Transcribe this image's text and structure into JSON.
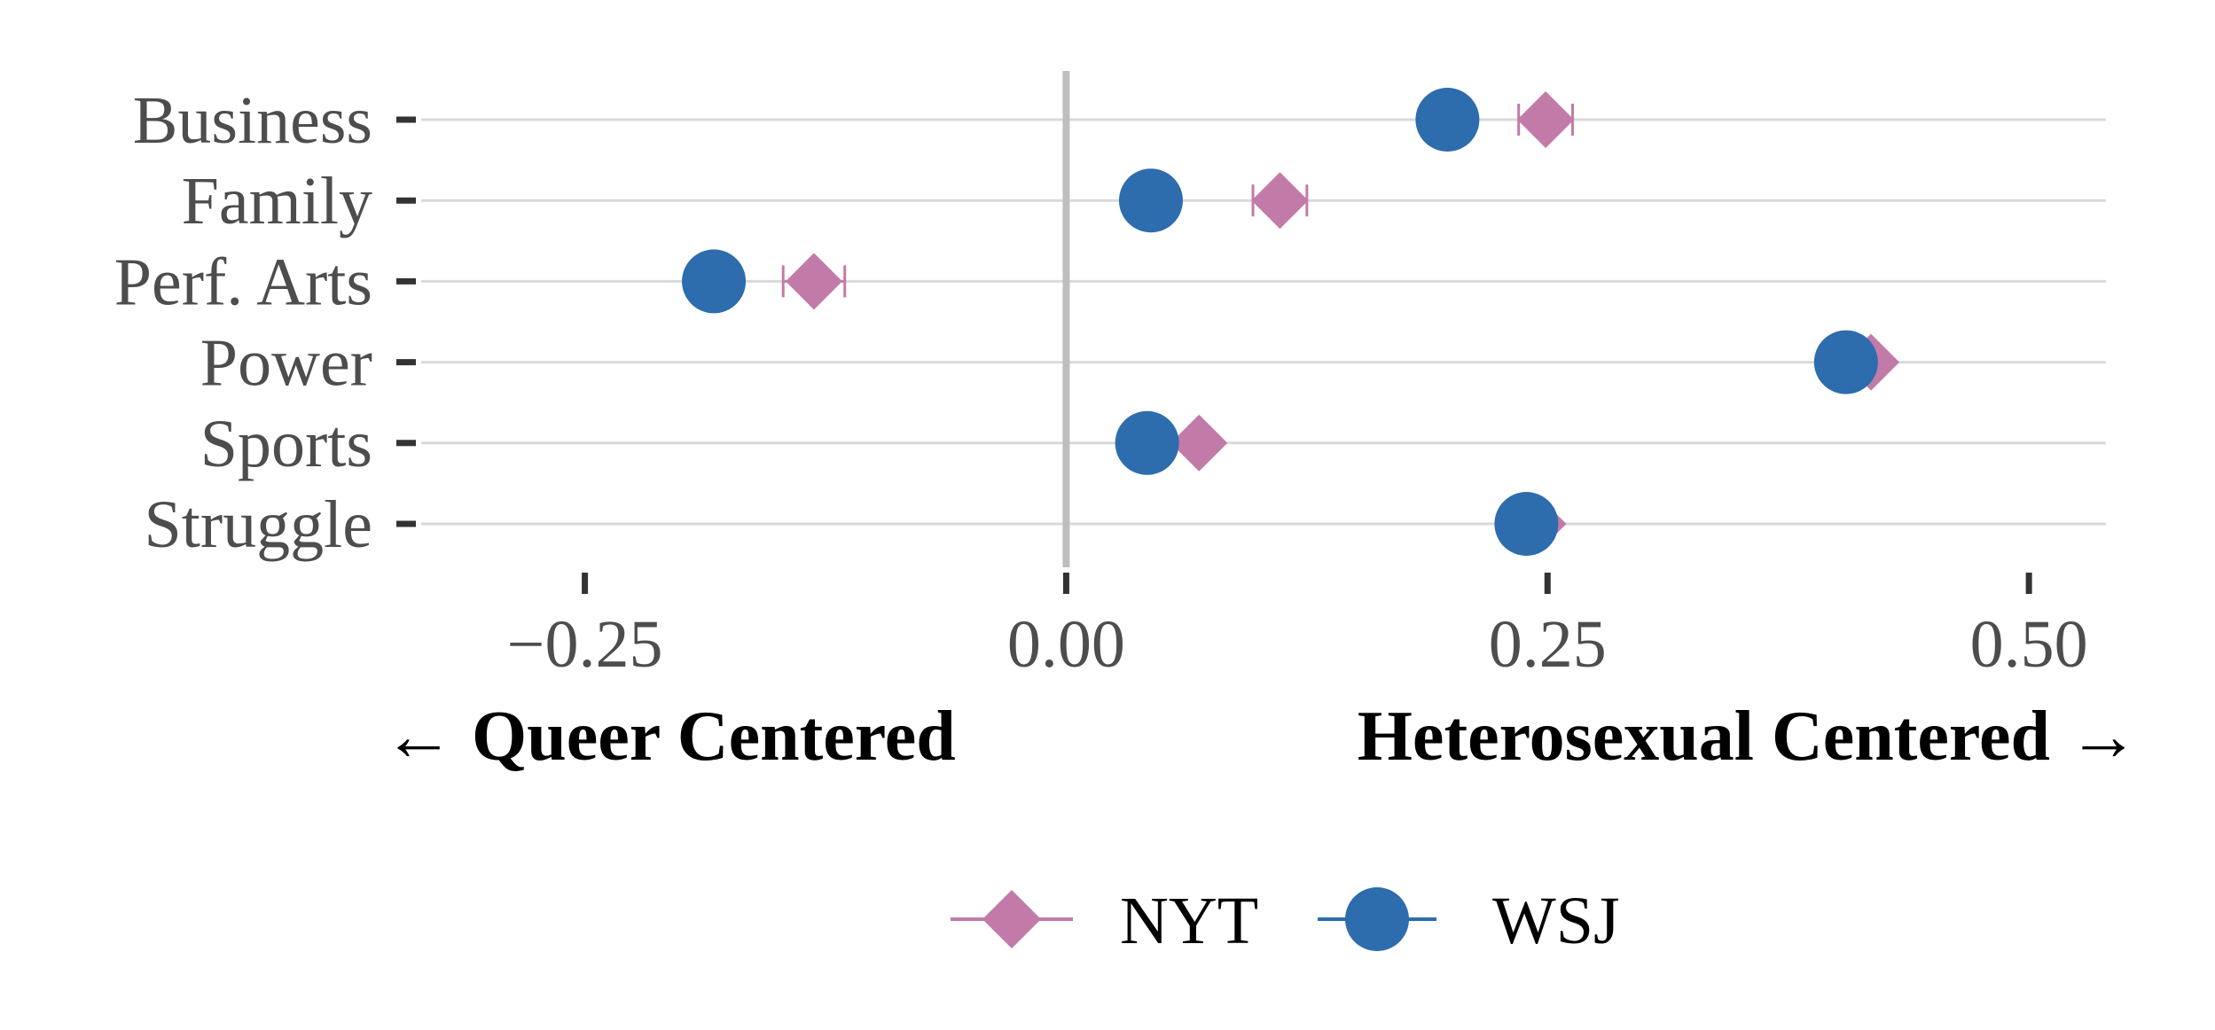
{
  "chart_data": {
    "type": "scatter",
    "orientation": "horizontal",
    "categories": [
      "Business",
      "Family",
      "Perf. Arts",
      "Power",
      "Sports",
      "Struggle"
    ],
    "series": [
      {
        "name": "NYT",
        "marker": "diamond",
        "color": "#c27ba8",
        "values": [
          0.249,
          0.111,
          -0.131,
          0.418,
          0.069,
          0.245
        ],
        "err": [
          0.014,
          0.014,
          0.016,
          0.004,
          0.004,
          0.008
        ]
      },
      {
        "name": "WSJ",
        "marker": "circle",
        "color": "#2d6cad",
        "values": [
          0.198,
          0.044,
          -0.183,
          0.405,
          0.042,
          0.239
        ],
        "err": [
          0.0,
          0.0,
          0.0,
          0.0,
          0.0,
          0.0
        ]
      }
    ],
    "xticks": [
      "-0.25",
      "0.00",
      "0.25",
      "0.50"
    ],
    "xlim": [
      -0.335,
      0.54
    ],
    "xlabel_left": "← Queer Centered",
    "xlabel_right": "Heterosexual Centered →",
    "reference_line": 0,
    "grid": true,
    "legend_position": "bottom"
  }
}
